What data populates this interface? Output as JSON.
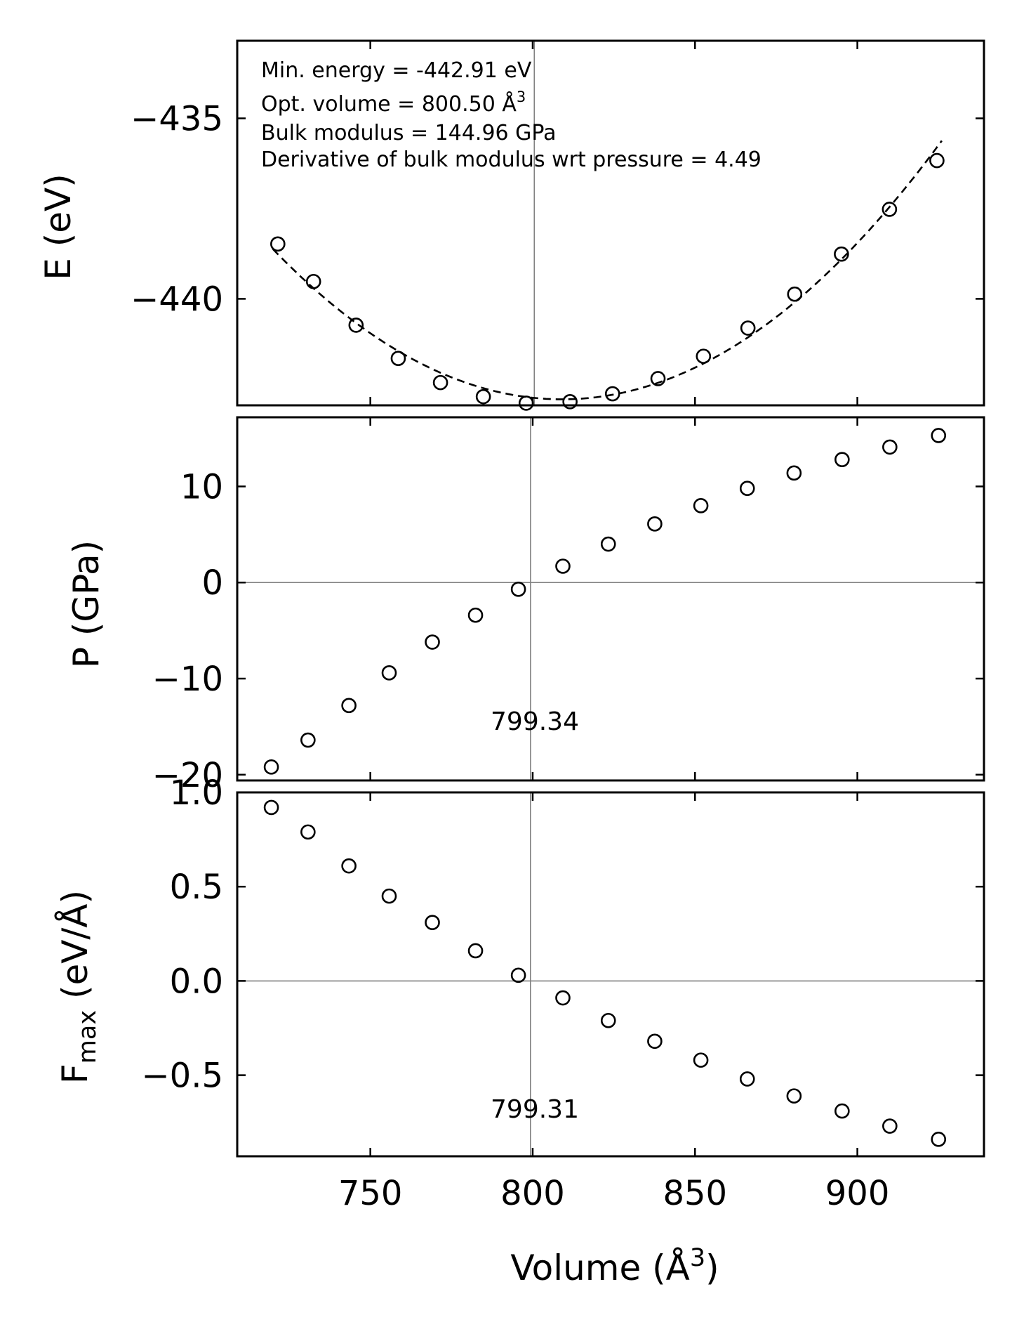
{
  "chart_data": [
    {
      "type": "scatter",
      "panel": "energy",
      "ylabel": "E (eV)",
      "ylim": [
        -442.95,
        -432.85
      ],
      "xlim": [
        709,
        939
      ],
      "yticks": [
        -435,
        -440
      ],
      "ytick_labels": [
        "−435",
        "−440"
      ],
      "ref_x": 800.5,
      "fit": "dashed",
      "x": [
        721.5,
        732.5,
        745.6,
        758.6,
        771.6,
        784.8,
        798.0,
        811.5,
        824.6,
        838.6,
        852.6,
        866.3,
        880.7,
        895.1,
        909.9,
        924.5
      ],
      "y": [
        -438.48,
        -439.52,
        -440.73,
        -441.65,
        -442.32,
        -442.71,
        -442.89,
        -442.85,
        -442.63,
        -442.21,
        -441.59,
        -440.81,
        -439.87,
        -438.76,
        -437.52,
        -436.17
      ],
      "annotations": [
        "Min. energy = -442.91 eV",
        "Opt. volume = 800.50 Å",
        "Bulk modulus = 144.96 GPa",
        "Derivative of bulk modulus wrt pressure = 4.49"
      ],
      "annotation_superscript": "3"
    },
    {
      "type": "scatter",
      "panel": "pressure",
      "ylabel": "P (GPa)",
      "ylim": [
        -20.6,
        17.2
      ],
      "xlim": [
        709,
        939
      ],
      "yticks": [
        10,
        0,
        -10,
        -20
      ],
      "ytick_labels": [
        "10",
        "0",
        "−10",
        "−20"
      ],
      "ref_x": 799.34,
      "ref_y": 0,
      "ref_label": "799.34",
      "x": [
        719.5,
        730.8,
        743.4,
        755.8,
        769.1,
        782.4,
        795.6,
        809.3,
        823.3,
        837.6,
        851.8,
        866.1,
        880.5,
        895.3,
        910.0,
        925.0
      ],
      "y": [
        -19.2,
        -16.4,
        -12.8,
        -9.4,
        -6.2,
        -3.4,
        -0.7,
        1.7,
        4.0,
        6.1,
        8.0,
        9.8,
        11.4,
        12.8,
        14.1,
        15.3
      ]
    },
    {
      "type": "scatter",
      "panel": "force",
      "ylabel": "F",
      "ylabel_sub": "max",
      "ylabel_units": " (eV/Å)",
      "ylim": [
        -0.93,
        1.0
      ],
      "xlim": [
        709,
        939
      ],
      "yticks": [
        1.0,
        0.5,
        0.0,
        -0.5
      ],
      "ytick_labels": [
        "1.0",
        "0.5",
        "0.0",
        "−0.5"
      ],
      "ref_x": 799.31,
      "ref_y": 0,
      "ref_label": "799.31",
      "xlabel": "Volume (Å",
      "xlabel_sup": "3",
      "xlabel_end": ")",
      "xticks": [
        750,
        800,
        850,
        900
      ],
      "xtick_labels": [
        "750",
        "800",
        "850",
        "900"
      ],
      "x": [
        719.5,
        730.8,
        743.4,
        755.8,
        769.1,
        782.4,
        795.6,
        809.3,
        823.3,
        837.6,
        851.8,
        866.1,
        880.5,
        895.3,
        910.0,
        925.0
      ],
      "y": [
        0.92,
        0.79,
        0.61,
        0.45,
        0.31,
        0.16,
        0.03,
        -0.09,
        -0.21,
        -0.32,
        -0.42,
        -0.52,
        -0.61,
        -0.69,
        -0.77,
        -0.84
      ]
    }
  ]
}
